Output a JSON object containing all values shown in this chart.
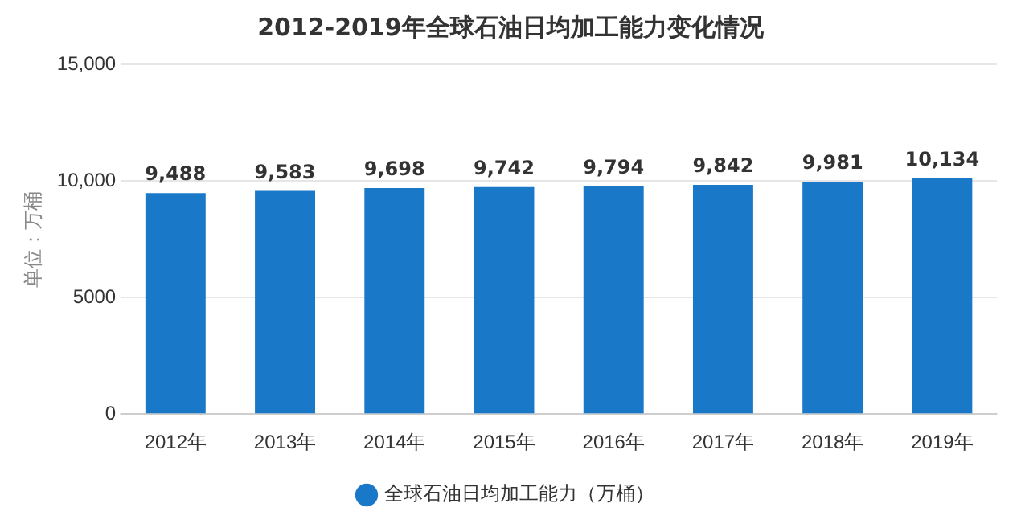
{
  "chart_data": {
    "type": "bar",
    "title": "2012-2019年全球石油日均加工能力变化情况",
    "ylabel": "单位：万桶",
    "categories": [
      "2012年",
      "2013年",
      "2014年",
      "2015年",
      "2016年",
      "2017年",
      "2018年",
      "2019年"
    ],
    "series": [
      {
        "name": "全球石油日均加工能力（万桶）",
        "color": "#1a78c8",
        "values": [
          9488,
          9583,
          9698,
          9742,
          9794,
          9842,
          9981,
          10134
        ],
        "value_labels": [
          "9,488",
          "9,583",
          "9,698",
          "9,742",
          "9,794",
          "9,842",
          "9,981",
          "10,134"
        ]
      }
    ],
    "ylim": [
      0,
      15000
    ],
    "yticks": [
      0,
      5000,
      {
        "value": 10000,
        "label": "10,000"
      },
      {
        "value": 15000,
        "label": "15,000"
      }
    ],
    "grid": "y",
    "legend": "bottom",
    "marker": "circle"
  }
}
